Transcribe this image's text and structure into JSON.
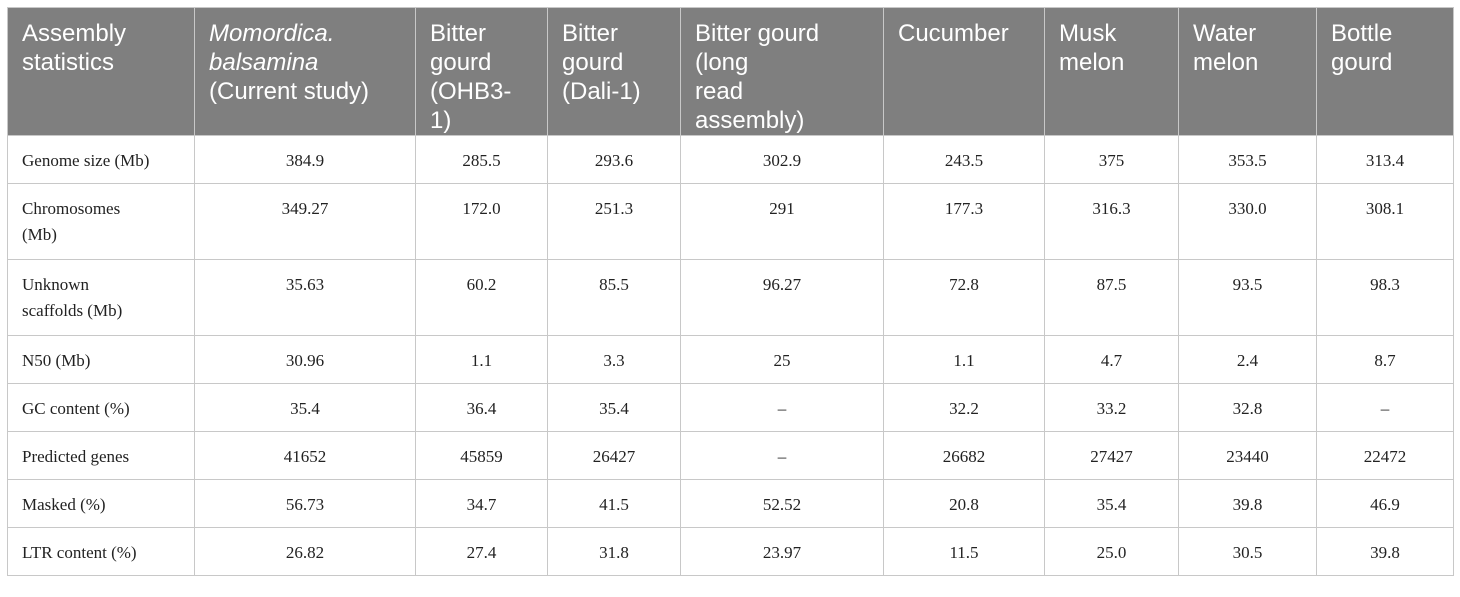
{
  "table": {
    "headers": [
      "Assembly\nstatistics",
      "Bitter\ngourd\n(OHB3-\n1)",
      "Bitter\ngourd\n(Dali-1)",
      "Bitter gourd\n(long\nread\nassembly)",
      "Cucumber",
      "Musk\nmelon",
      "Water\nmelon",
      "Bottle\ngourd"
    ],
    "current_study_header": {
      "species": "Momordica.\nbalsamina",
      "note": "(Current study)"
    },
    "rows": [
      {
        "label": "Genome size (Mb)",
        "values": [
          "384.9",
          "285.5",
          "293.6",
          "302.9",
          "243.5",
          "375",
          "353.5",
          "313.4"
        ]
      },
      {
        "label": "Chromosomes\n(Mb)",
        "values": [
          "349.27",
          "172.0",
          "251.3",
          "291",
          "177.3",
          "316.3",
          "330.0",
          "308.1"
        ]
      },
      {
        "label": "Unknown\nscaffolds (Mb)",
        "values": [
          "35.63",
          "60.2",
          "85.5",
          "96.27",
          "72.8",
          "87.5",
          "93.5",
          "98.3"
        ]
      },
      {
        "label": "N50 (Mb)",
        "values": [
          "30.96",
          "1.1",
          "3.3",
          "25",
          "1.1",
          "4.7",
          "2.4",
          "8.7"
        ]
      },
      {
        "label": "GC content (%)",
        "values": [
          "35.4",
          "36.4",
          "35.4",
          "–",
          "32.2",
          "33.2",
          "32.8",
          "–"
        ]
      },
      {
        "label": "Predicted genes",
        "values": [
          "41652",
          "45859",
          "26427",
          "–",
          "26682",
          "27427",
          "23440",
          "22472"
        ]
      },
      {
        "label": "Masked (%)",
        "values": [
          "56.73",
          "34.7",
          "41.5",
          "52.52",
          "20.8",
          "35.4",
          "39.8",
          "46.9"
        ]
      },
      {
        "label": "LTR content (%)",
        "values": [
          "26.82",
          "27.4",
          "31.8",
          "23.97",
          "11.5",
          "25.0",
          "30.5",
          "39.8"
        ]
      }
    ]
  }
}
